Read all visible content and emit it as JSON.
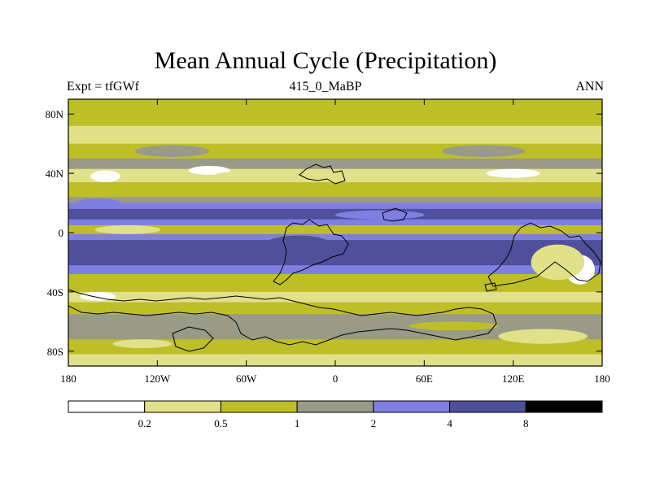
{
  "title": "Mean Annual Cycle (Precipitation)",
  "subtitle_left": "Expt = tfGWf",
  "subtitle_center": "415_0_MaBP",
  "subtitle_right": "ANN",
  "y_ticks": [
    "80N",
    "40N",
    "0",
    "40S",
    "80S"
  ],
  "x_ticks": [
    "180",
    "120W",
    "60W",
    "0",
    "60E",
    "120E",
    "180"
  ],
  "colorbar": {
    "labels": [
      "0.2",
      "0.5",
      "1",
      "2",
      "4",
      "8"
    ],
    "colors": [
      "#ffffff",
      "#e1e189",
      "#bebe28",
      "#9a9a89",
      "#7f7fe3",
      "#4f4f9b",
      "#000000"
    ]
  },
  "chart_data": {
    "type": "heatmap",
    "title": "Mean Annual Cycle (Precipitation)",
    "variable": "Precipitation",
    "xlabel": "",
    "ylabel": "",
    "xlim": [
      -180,
      180
    ],
    "ylim": [
      -90,
      90
    ],
    "contour_levels": [
      0.2,
      0.5,
      1,
      2,
      4,
      8
    ],
    "zonal_bands": [
      {
        "lat_from": 90,
        "lat_to": 72,
        "level_index": 2
      },
      {
        "lat_from": 72,
        "lat_to": 60,
        "level_index": 1
      },
      {
        "lat_from": 60,
        "lat_to": 50,
        "level_index": 2
      },
      {
        "lat_from": 50,
        "lat_to": 43,
        "level_index": 3
      },
      {
        "lat_from": 43,
        "lat_to": 34,
        "level_index": 1
      },
      {
        "lat_from": 34,
        "lat_to": 24,
        "level_index": 2
      },
      {
        "lat_from": 24,
        "lat_to": 20,
        "level_index": 3
      },
      {
        "lat_from": 20,
        "lat_to": 16,
        "level_index": 4
      },
      {
        "lat_from": 16,
        "lat_to": 9,
        "level_index": 5
      },
      {
        "lat_from": 9,
        "lat_to": 5,
        "level_index": 4
      },
      {
        "lat_from": 5,
        "lat_to": -1,
        "level_index": 2
      },
      {
        "lat_from": -1,
        "lat_to": -5,
        "level_index": 4
      },
      {
        "lat_from": -5,
        "lat_to": -22,
        "level_index": 5
      },
      {
        "lat_from": -22,
        "lat_to": -28,
        "level_index": 4
      },
      {
        "lat_from": -28,
        "lat_to": -40,
        "level_index": 2
      },
      {
        "lat_from": -40,
        "lat_to": -47,
        "level_index": 1
      },
      {
        "lat_from": -47,
        "lat_to": -55,
        "level_index": 2
      },
      {
        "lat_from": -55,
        "lat_to": -72,
        "level_index": 3
      },
      {
        "lat_from": -72,
        "lat_to": -82,
        "level_index": 2
      },
      {
        "lat_from": -82,
        "lat_to": -90,
        "level_index": 1
      }
    ],
    "patches": [
      {
        "lon": -155,
        "lat": 38,
        "rx": 10,
        "ry": 4,
        "level_index": 0
      },
      {
        "lon": -85,
        "lat": 42,
        "rx": 14,
        "ry": 3,
        "level_index": 0
      },
      {
        "lon": -70,
        "lat": 38,
        "rx": 12,
        "ry": 3,
        "level_index": 1
      },
      {
        "lon": -110,
        "lat": 55,
        "rx": 25,
        "ry": 4,
        "level_index": 3
      },
      {
        "lon": 120,
        "lat": 40,
        "rx": 18,
        "ry": 3,
        "level_index": 0
      },
      {
        "lon": 100,
        "lat": 55,
        "rx": 28,
        "ry": 4,
        "level_index": 3
      },
      {
        "lon": -140,
        "lat": 2,
        "rx": 22,
        "ry": 3,
        "level_index": 1
      },
      {
        "lon": -20,
        "lat": -12,
        "rx": 5,
        "ry": 5,
        "level_index": 6
      },
      {
        "lon": -25,
        "lat": -10,
        "rx": 25,
        "ry": 8,
        "level_index": 5
      },
      {
        "lon": 165,
        "lat": -25,
        "rx": 10,
        "ry": 10,
        "level_index": 0
      },
      {
        "lon": 150,
        "lat": -20,
        "rx": 18,
        "ry": 12,
        "level_index": 1
      },
      {
        "lon": -160,
        "lat": -43,
        "rx": 12,
        "ry": 3,
        "level_index": 0
      },
      {
        "lon": 80,
        "lat": -63,
        "rx": 30,
        "ry": 3,
        "level_index": 2
      },
      {
        "lon": 140,
        "lat": -70,
        "rx": 30,
        "ry": 5,
        "level_index": 1
      },
      {
        "lon": -130,
        "lat": -75,
        "rx": 20,
        "ry": 3,
        "level_index": 1
      },
      {
        "lon": -160,
        "lat": 20,
        "rx": 15,
        "ry": 3,
        "level_index": 4
      },
      {
        "lon": 30,
        "lat": 12,
        "rx": 30,
        "ry": 3,
        "level_index": 4
      }
    ],
    "continent_outlines": true
  }
}
